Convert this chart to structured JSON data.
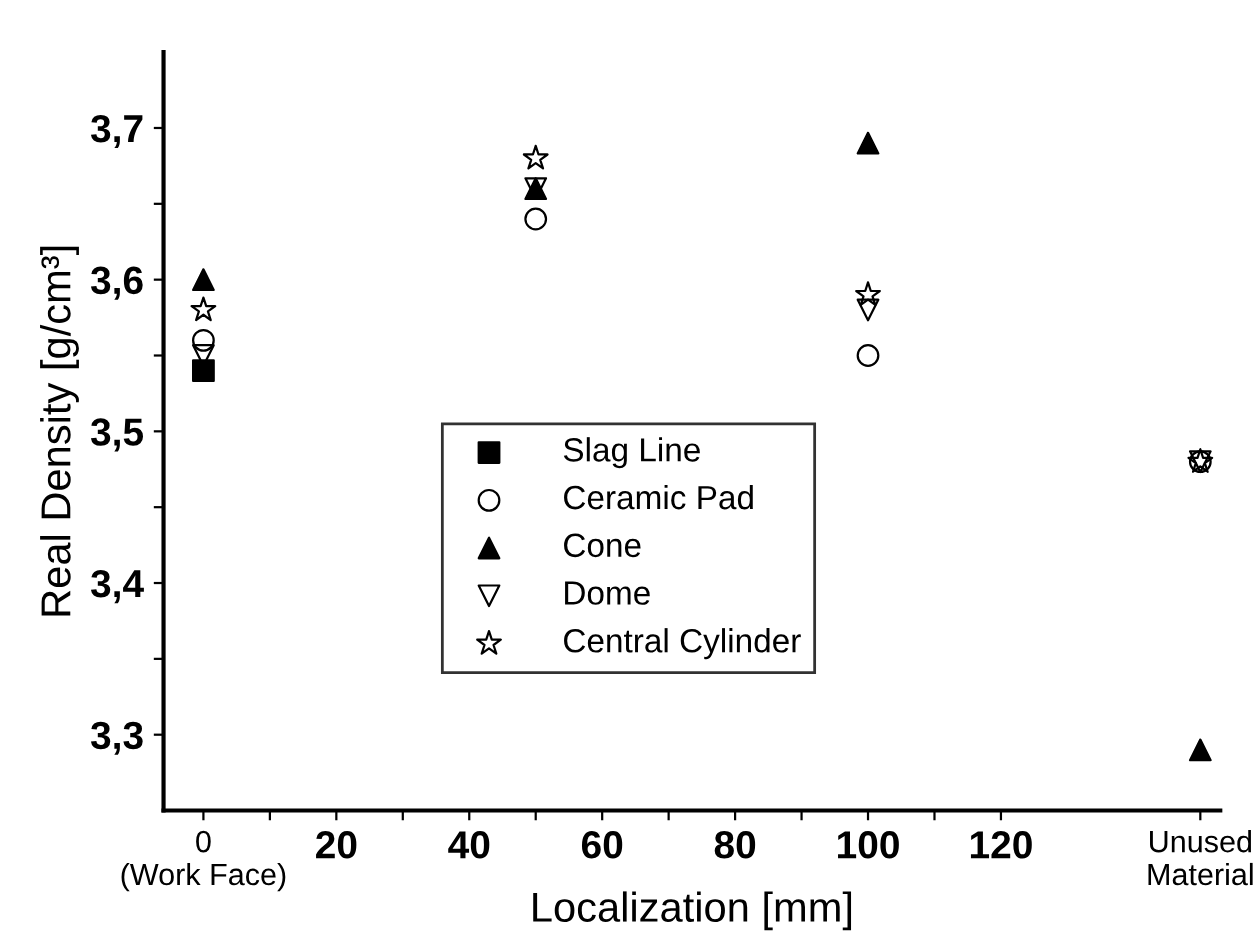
{
  "chart_data": {
    "type": "scatter",
    "xlabel": "Localization [mm]",
    "ylabel": "Real Density [g/cm³]",
    "xlim": [
      -6,
      153
    ],
    "ylim": [
      3.25,
      3.75
    ],
    "xticks": [
      {
        "value": 0,
        "label": "0\n(Work Face)"
      },
      {
        "value": 10,
        "label": null
      },
      20,
      {
        "value": 30,
        "label": null
      },
      40,
      {
        "value": 50,
        "label": null
      },
      60,
      {
        "value": 70,
        "label": null
      },
      80,
      {
        "value": 90,
        "label": null
      },
      100,
      {
        "value": 110,
        "label": null
      },
      120,
      {
        "value": 150,
        "label": "Unused\nMaterial"
      }
    ],
    "yticks": [
      {
        "value": 3.3,
        "label": "3,3"
      },
      {
        "value": 3.35,
        "label": null
      },
      {
        "value": 3.4,
        "label": "3,4"
      },
      {
        "value": 3.45,
        "label": null
      },
      {
        "value": 3.5,
        "label": "3,5"
      },
      {
        "value": 3.55,
        "label": null
      },
      {
        "value": 3.6,
        "label": "3,6"
      },
      {
        "value": 3.65,
        "label": null
      },
      {
        "value": 3.7,
        "label": "3,7"
      }
    ],
    "grid": false,
    "legend": "bottom",
    "x": [
      0,
      50,
      100,
      150
    ],
    "series": [
      {
        "name": "Slag Line",
        "color": "#000000",
        "marker": "square",
        "values": [
          3.54,
          null,
          null,
          null
        ]
      },
      {
        "name": "Ceramic Pad",
        "color": "#000000",
        "marker": "circle",
        "values": [
          3.56,
          3.64,
          3.55,
          3.48
        ]
      },
      {
        "name": "Cone",
        "color": "#000000",
        "marker": "triangle",
        "values": [
          3.6,
          3.66,
          3.69,
          3.29
        ]
      },
      {
        "name": "Dome",
        "color": "#000000",
        "marker": "triangle_down",
        "values": [
          3.55,
          3.66,
          3.58,
          3.48
        ]
      },
      {
        "name": "Central Cylinder",
        "color": "#000000",
        "marker": "star",
        "values": [
          3.58,
          3.68,
          3.59,
          3.48
        ]
      }
    ]
  }
}
